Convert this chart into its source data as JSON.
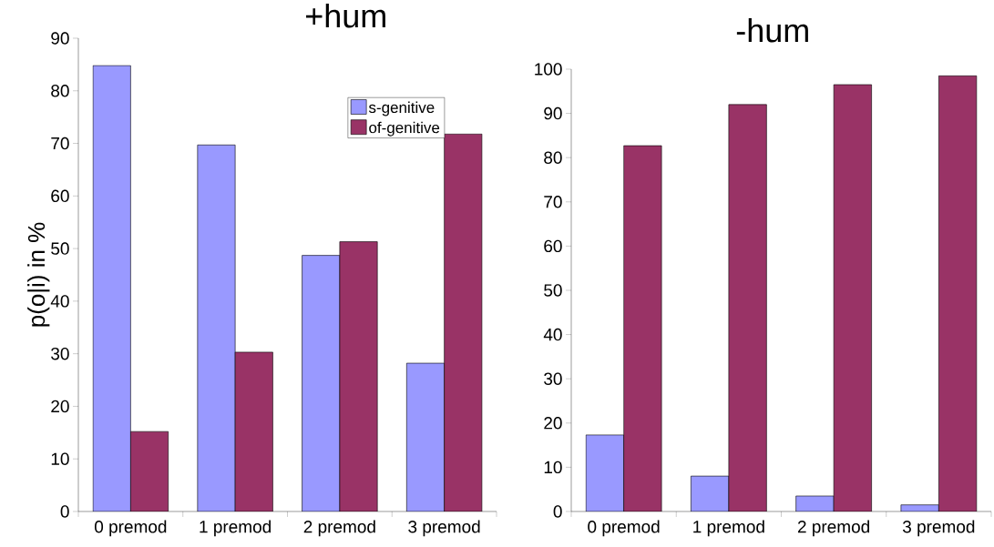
{
  "chart_data": [
    {
      "type": "bar",
      "title": "+hum",
      "ylabel": "p(o|i) in %",
      "categories": [
        "0 premod",
        "1 premod",
        "2 premod",
        "3 premod"
      ],
      "series": [
        {
          "name": "s-genitive",
          "color": "#9999ff",
          "values": [
            84.8,
            69.7,
            48.7,
            28.2
          ]
        },
        {
          "name": "of-genitive",
          "color": "#993366",
          "values": [
            15.2,
            30.3,
            51.3,
            71.8
          ]
        }
      ],
      "ylim": [
        0,
        90
      ],
      "yticks": [
        0,
        10,
        20,
        30,
        40,
        50,
        60,
        70,
        80,
        90
      ],
      "legend": "top right"
    },
    {
      "type": "bar",
      "title": "-hum",
      "categories": [
        "0 premod",
        "1 premod",
        "2 premod",
        "3 premod"
      ],
      "series": [
        {
          "color": "#9999ff",
          "values": [
            17.3,
            8.0,
            3.5,
            1.5
          ]
        },
        {
          "color": "#993366",
          "values": [
            82.7,
            92.0,
            96.5,
            98.5
          ]
        }
      ],
      "ylim": [
        0,
        100
      ],
      "yticks": [
        0,
        10,
        20,
        30,
        40,
        50,
        60,
        70,
        80,
        90,
        100
      ]
    }
  ]
}
